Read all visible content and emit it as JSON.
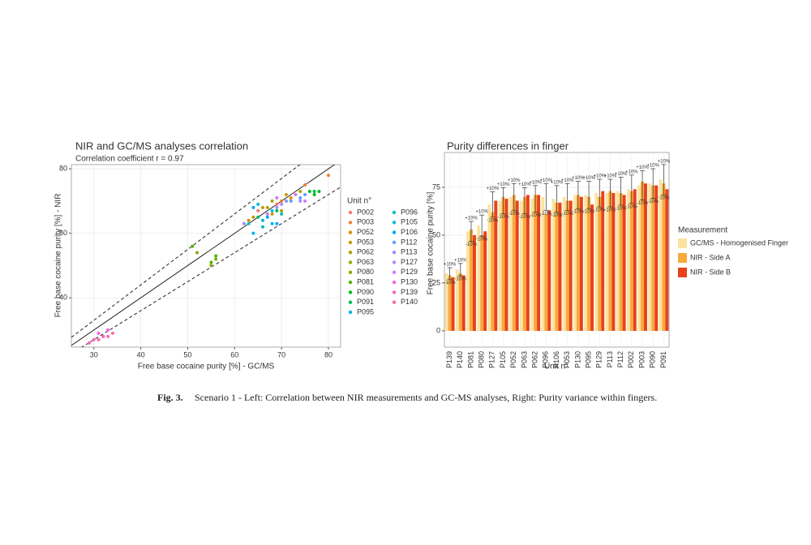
{
  "chart_data": [
    {
      "type": "scatter",
      "title": "NIR and GC/MS analyses correlation",
      "subtitle": "Correlation coefficient r = 0.97",
      "x_label": "Free base cocaine purity [%] - GC/MS",
      "y_label": "Free base cocaine purity [%] - NIR",
      "legend_title": "Unit n°",
      "xlim": [
        25.2,
        82.6
      ],
      "ylim": [
        24.7,
        81.3
      ],
      "xticks": [
        30,
        40,
        50,
        60,
        70,
        80
      ],
      "yticks": [
        40,
        60,
        80
      ],
      "grid": true,
      "tolerance_percent": 10,
      "series": [
        {
          "name": "P002",
          "color": "#f8766d",
          "x": [
            65,
            67,
            69
          ],
          "values": [
            67,
            66,
            69
          ]
        },
        {
          "name": "P003",
          "color": "#ec8239",
          "x": [
            73,
            75,
            80
          ],
          "values": [
            72,
            75,
            78
          ]
        },
        {
          "name": "P052",
          "color": "#de8c00",
          "x": [
            63,
            70,
            72
          ],
          "values": [
            64,
            70,
            71
          ]
        },
        {
          "name": "P053",
          "color": "#cd9600",
          "x": [
            66,
            68,
            71
          ],
          "values": [
            68,
            66,
            72
          ]
        },
        {
          "name": "P062",
          "color": "#b79f00",
          "x": [
            64,
            67,
            74
          ],
          "values": [
            65,
            68,
            73
          ]
        },
        {
          "name": "P063",
          "color": "#9da700",
          "x": [
            62,
            68,
            70
          ],
          "values": [
            63,
            70,
            67
          ]
        },
        {
          "name": "P080",
          "color": "#7cae00",
          "x": [
            52,
            55,
            56
          ],
          "values": [
            54,
            50,
            52
          ]
        },
        {
          "name": "P081",
          "color": "#4fb400",
          "x": [
            51,
            55,
            56
          ],
          "values": [
            56,
            51,
            53
          ]
        },
        {
          "name": "P090",
          "color": "#00b81f",
          "x": [
            76,
            77,
            78
          ],
          "values": [
            73,
            72,
            73
          ]
        },
        {
          "name": "P091",
          "color": "#00bc59",
          "x": [
            65,
            69,
            77
          ],
          "values": [
            65,
            67,
            73
          ]
        },
        {
          "name": "P095",
          "color": "#00b5ec",
          "x": [
            64,
            66,
            68
          ],
          "values": [
            60,
            64,
            63
          ]
        },
        {
          "name": "P096",
          "color": "#00c0bc",
          "x": [
            63,
            66,
            70
          ],
          "values": [
            63,
            62,
            66
          ]
        },
        {
          "name": "P105",
          "color": "#00bcd6",
          "x": [
            65,
            68,
            71
          ],
          "values": [
            69,
            67,
            70
          ]
        },
        {
          "name": "P106",
          "color": "#00a9ff",
          "x": [
            64,
            67,
            69
          ],
          "values": [
            68,
            65,
            63
          ]
        },
        {
          "name": "P112",
          "color": "#619cff",
          "x": [
            72,
            74,
            75
          ],
          "values": [
            70,
            71,
            72
          ]
        },
        {
          "name": "P113",
          "color": "#9590ff",
          "x": [
            69,
            71,
            74
          ],
          "values": [
            68,
            70,
            70
          ]
        },
        {
          "name": "P127",
          "color": "#b983ff",
          "x": [
            62,
            67,
            70
          ],
          "values": [
            63,
            66,
            69
          ]
        },
        {
          "name": "P129",
          "color": "#d477ff",
          "x": [
            69,
            73,
            75
          ],
          "values": [
            71,
            72,
            70
          ]
        },
        {
          "name": "P130",
          "color": "#f564e3",
          "x": [
            31,
            32,
            33
          ],
          "values": [
            29,
            28,
            30
          ]
        },
        {
          "name": "P139",
          "color": "#ff62bc",
          "x": [
            29,
            30,
            32
          ],
          "values": [
            26,
            27,
            28
          ]
        },
        {
          "name": "P140",
          "color": "#ff67a4",
          "x": [
            31,
            33,
            34
          ],
          "values": [
            27,
            28,
            29
          ]
        }
      ]
    },
    {
      "type": "bar",
      "title": "Purity differences in finger",
      "x_label": "Unit n°",
      "y_label": "Free base cocaine purity [%]",
      "legend_title": "Measurement",
      "ylim": [
        -8.5,
        93.2
      ],
      "yticks": [
        0,
        25,
        50,
        75
      ],
      "grid": true,
      "error_percent": 10,
      "error_labels": [
        "+10%",
        "-10%"
      ],
      "categories": [
        "P139",
        "P140",
        "P081",
        "P080",
        "P127",
        "P105",
        "P052",
        "P063",
        "P062",
        "P096",
        "P106",
        "P053",
        "P130",
        "P095",
        "P129",
        "P113",
        "P112",
        "P002",
        "P003",
        "P090",
        "P091"
      ],
      "series": [
        {
          "name": "GC/MS - Homogenised Finger",
          "color": "#fbe3a0",
          "values": [
            30,
            32,
            52,
            55,
            66,
            68,
            70,
            68,
            69,
            70,
            69,
            70,
            71,
            71,
            72,
            72,
            73,
            74,
            76,
            77,
            79
          ]
        },
        {
          "name": "NIR - Side A",
          "color": "#f9a83e",
          "values": [
            29,
            30,
            53,
            50,
            62,
            70,
            71,
            70,
            71,
            61,
            67,
            68,
            71,
            70,
            70,
            73,
            72,
            73,
            78,
            76,
            77
          ]
        },
        {
          "name": "NIR - Side B",
          "color": "#e8421d",
          "values": [
            28,
            29,
            50,
            52,
            68,
            69,
            68,
            71,
            71,
            63,
            67,
            68,
            70,
            66,
            73,
            72,
            71,
            74,
            77,
            76,
            74
          ]
        }
      ]
    }
  ],
  "caption": {
    "label": "Fig. 3.",
    "text": "Scenario 1 - Left: Correlation between NIR measurements and GC-MS analyses, Right: Purity variance within fingers."
  }
}
